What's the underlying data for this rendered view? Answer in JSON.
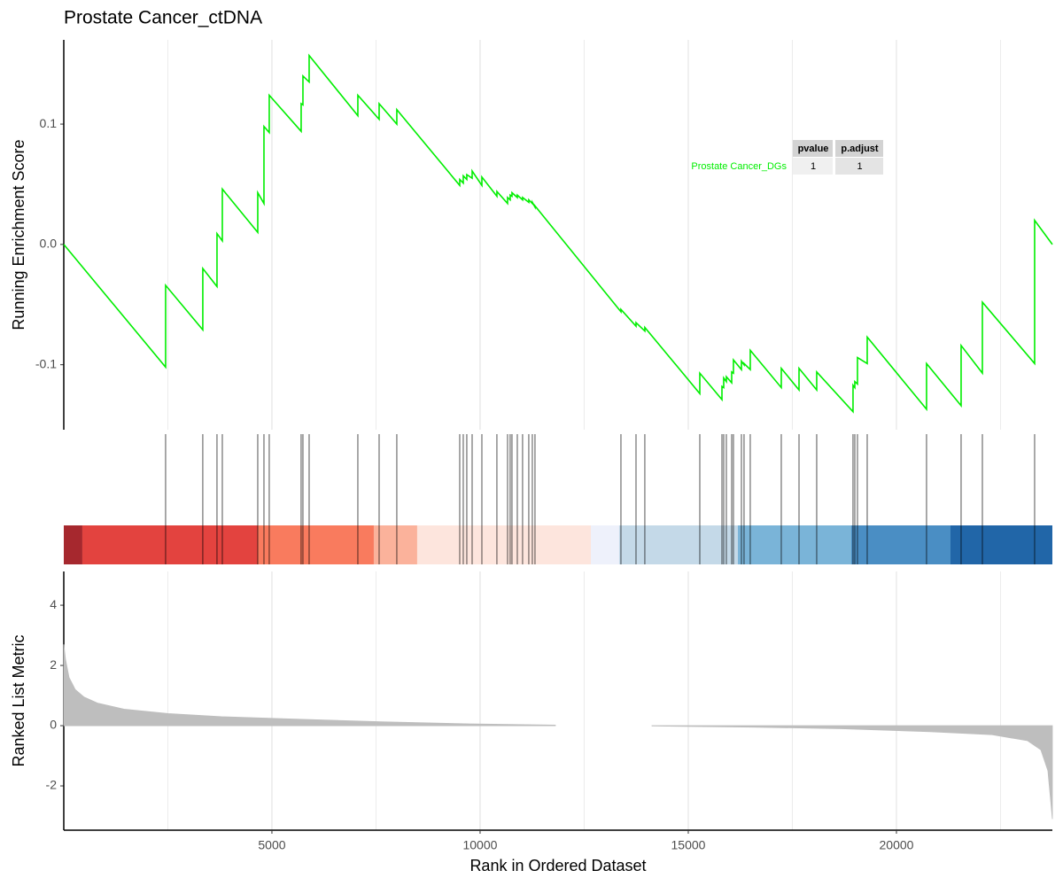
{
  "chart_data": [
    {
      "type": "line",
      "title": "Prostate Cancer_ctDNA",
      "ylabel": "Running Enrichment Score",
      "color": "#00ee00",
      "grid": true,
      "xlim": [
        1,
        23745
      ],
      "ylim": [
        -0.154,
        0.17
      ],
      "xticks": [
        5000,
        10000,
        15000,
        20000
      ],
      "yticks": [
        -0.1,
        {
          "value": 0,
          "label": "0.0"
        },
        0.1
      ],
      "x": [
        1,
        2447,
        2447,
        3340,
        3340,
        3681,
        3681,
        3809,
        3809,
        4660,
        4660,
        4809,
        4809,
        4936,
        4936,
        5702,
        5702,
        5745,
        5745,
        5894,
        5894,
        7064,
        7064,
        7575,
        7575,
        8000,
        8000,
        9511,
        9511,
        9596,
        9596,
        9681,
        9681,
        9809,
        9809,
        10043,
        10043,
        10404,
        10404,
        10660,
        10660,
        10723,
        10723,
        10766,
        10766,
        10894,
        10894,
        11021,
        11021,
        11170,
        11170,
        11255,
        11255,
        11319,
        11319,
        13383,
        13383,
        13745,
        13745,
        13957,
        13957,
        15277,
        15277,
        15809,
        15809,
        15851,
        15851,
        15915,
        15915,
        16043,
        16043,
        16085,
        16085,
        16277,
        16277,
        16340,
        16340,
        16489,
        16489,
        17234,
        17234,
        17660,
        17660,
        18085,
        18085,
        18957,
        18957,
        19000,
        19000,
        19064,
        19064,
        19298,
        19298,
        20723,
        20723,
        21553,
        21553,
        22064,
        22064,
        23319,
        23319,
        23745
      ],
      "values": [
        0,
        -0.102,
        -0.034,
        -0.071,
        -0.02,
        -0.035,
        0.009,
        0.003,
        0.046,
        0.01,
        0.043,
        0.034,
        0.098,
        0.093,
        0.124,
        0.094,
        0.117,
        0.116,
        0.14,
        0.135,
        0.157,
        0.107,
        0.124,
        0.104,
        0.117,
        0.1,
        0.112,
        0.049,
        0.054,
        0.051,
        0.057,
        0.054,
        0.058,
        0.055,
        0.061,
        0.049,
        0.056,
        0.04,
        0.044,
        0.034,
        0.039,
        0.037,
        0.041,
        0.04,
        0.043,
        0.039,
        0.041,
        0.037,
        0.039,
        0.035,
        0.037,
        0.034,
        0.035,
        0.031,
        0.032,
        -0.056,
        -0.054,
        -0.068,
        -0.065,
        -0.072,
        -0.069,
        -0.124,
        -0.107,
        -0.129,
        -0.118,
        -0.119,
        -0.111,
        -0.114,
        -0.11,
        -0.115,
        -0.106,
        -0.107,
        -0.096,
        -0.104,
        -0.097,
        -0.1,
        -0.099,
        -0.104,
        -0.088,
        -0.119,
        -0.103,
        -0.121,
        -0.103,
        -0.121,
        -0.106,
        -0.139,
        -0.117,
        -0.119,
        -0.114,
        -0.116,
        -0.094,
        -0.099,
        -0.077,
        -0.137,
        -0.099,
        -0.134,
        -0.084,
        -0.107,
        -0.048,
        -0.099,
        0.02,
        0
      ],
      "table": {
        "columns": [
          "pvalue",
          "p.adjust"
        ],
        "rows": [
          {
            "name": "Prostate Cancer_DGs",
            "values": [
              1,
              1
            ]
          }
        ]
      }
    },
    {
      "type": "rug",
      "color": "#000000",
      "xlim": [
        1,
        23745
      ],
      "x": [
        2447,
        3340,
        3681,
        3809,
        4660,
        4809,
        4936,
        5702,
        5745,
        5894,
        7064,
        7575,
        8000,
        9511,
        9596,
        9681,
        9809,
        10043,
        10404,
        10660,
        10723,
        10766,
        10894,
        11021,
        11170,
        11255,
        11319,
        13383,
        13745,
        13957,
        15277,
        15809,
        15851,
        15915,
        16043,
        16085,
        16277,
        16340,
        16489,
        17234,
        17660,
        18085,
        18957,
        19000,
        19064,
        19298,
        20723,
        21553,
        22064,
        23319
      ],
      "color_bar": {
        "breaks": [
          1,
          447,
          4660,
          7447,
          8489,
          12660,
          13340,
          16191,
          18915,
          21298,
          23745
        ],
        "colors": [
          "#a6282e",
          "#e3433f",
          "#f97b5e",
          "#fbb29b",
          "#fde5dd",
          "#eef1fb",
          "#c4d9e8",
          "#7ab4d8",
          "#4a8ec4",
          "#2166a8"
        ]
      }
    },
    {
      "type": "area",
      "ylabel": "Ranked List Metric",
      "xlabel": "Rank in Ordered Dataset",
      "color": "#bebebe",
      "grid": true,
      "xlim": [
        1,
        23745
      ],
      "ylim": [
        -3.47,
        5.12
      ],
      "xticks": [
        5000,
        10000,
        15000,
        20000
      ],
      "yticks": [
        -2,
        0,
        2,
        4
      ],
      "x": [
        1,
        43,
        128,
        277,
        489,
        809,
        1447,
        2511,
        3787,
        5489,
        7617,
        9745,
        11809,
        12900,
        14128,
        16553,
        18681,
        20809,
        22298,
        23149,
        23468,
        23638,
        23745
      ],
      "values": [
        2.7,
        2.2,
        1.6,
        1.2,
        0.95,
        0.75,
        0.55,
        0.4,
        0.3,
        0.22,
        0.13,
        0.06,
        0.02,
        null,
        -0.01,
        -0.05,
        -0.1,
        -0.2,
        -0.3,
        -0.5,
        -0.8,
        -1.5,
        -3.1
      ]
    }
  ]
}
